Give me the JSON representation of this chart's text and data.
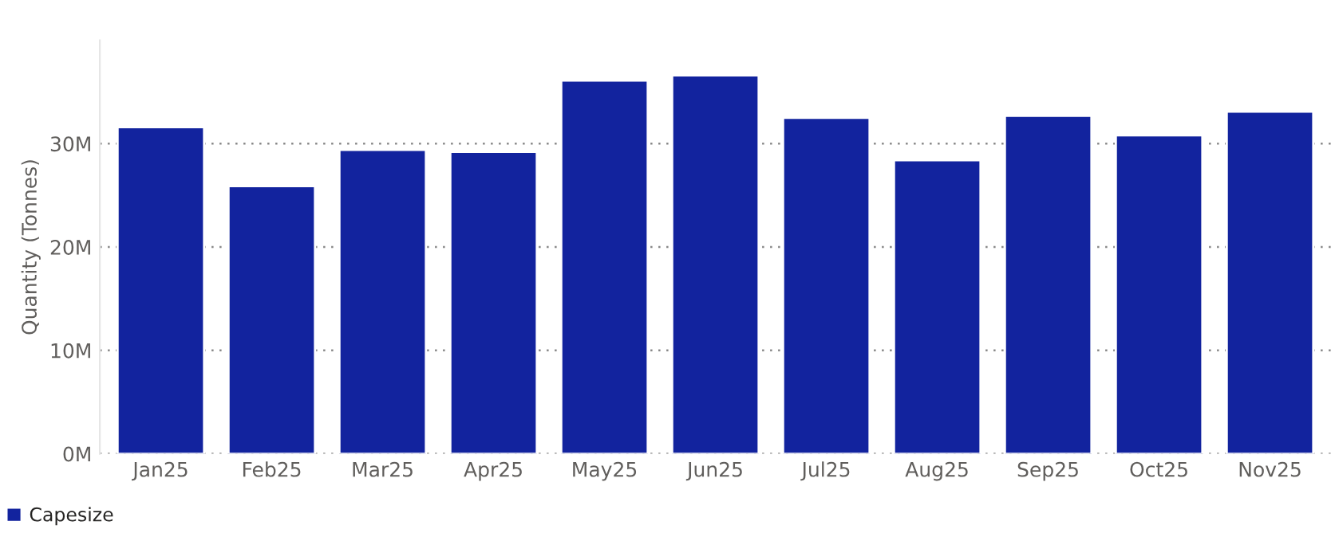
{
  "chart_data": {
    "type": "bar",
    "ylabel": "Quantity (Tonnes)",
    "categories": [
      "Jan25",
      "Feb25",
      "Mar25",
      "Apr25",
      "May25",
      "Jun25",
      "Jul25",
      "Aug25",
      "Sep25",
      "Oct25",
      "Nov25"
    ],
    "series": [
      {
        "name": "Capesize",
        "color": "#12239e",
        "values": [
          31.6,
          25.9,
          29.4,
          29.2,
          36.1,
          36.6,
          32.5,
          28.4,
          32.7,
          30.8,
          33.1
        ]
      }
    ],
    "ylim": [
      0,
      40
    ],
    "yticks": [
      {
        "value": 0,
        "label": "0M"
      },
      {
        "value": 10,
        "label": "10M"
      },
      {
        "value": 20,
        "label": "20M"
      },
      {
        "value": 30,
        "label": "30M"
      }
    ],
    "grid": "y",
    "legend": "bottom left"
  }
}
